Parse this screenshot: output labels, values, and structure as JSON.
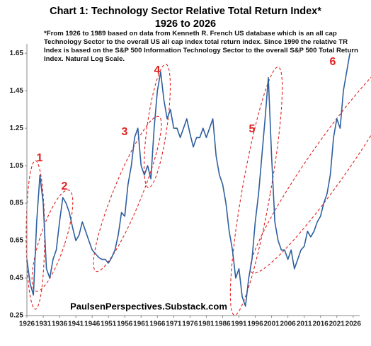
{
  "chart_data": {
    "type": "line",
    "title": "Chart 1: Technology Sector Relative Total Return Index*",
    "subtitle": "1926 to 2026",
    "note": "*From 1926 to 1989 based on data from Kenneth R. French US database which is an all cap Technology Sector to the overall US all cap index total return index.  Since 1990 the relative TR Index is based on the S&P 500 Information Technology Sector to the overall S&P 500 Total Return Index.   Natural Log Scale.",
    "source": "PaulsenPerspectives.Substack.com",
    "annotations": [
      "1",
      "2",
      "3",
      "4",
      "5",
      "6"
    ],
    "color": "#2e5f9e",
    "x": [
      1926,
      1927,
      1928,
      1929,
      1930,
      1931,
      1932,
      1933,
      1934,
      1935,
      1936,
      1937,
      1938,
      1939,
      1940,
      1941,
      1942,
      1943,
      1944,
      1945,
      1946,
      1947,
      1948,
      1949,
      1950,
      1951,
      1952,
      1953,
      1954,
      1955,
      1956,
      1957,
      1958,
      1959,
      1960,
      1961,
      1962,
      1963,
      1964,
      1965,
      1966,
      1967,
      1968,
      1969,
      1970,
      1971,
      1972,
      1973,
      1974,
      1975,
      1976,
      1977,
      1978,
      1979,
      1980,
      1981,
      1982,
      1983,
      1984,
      1985,
      1986,
      1987,
      1988,
      1989,
      1990,
      1991,
      1992,
      1993,
      1994,
      1995,
      1996,
      1997,
      1998,
      1999,
      2000,
      2001,
      2002,
      2003,
      2004,
      2005,
      2006,
      2007,
      2008,
      2009,
      2010,
      2011,
      2012,
      2013,
      2014,
      2015,
      2016,
      2017,
      2018,
      2019,
      2020,
      2021,
      2022,
      2023,
      2024,
      2025
    ],
    "values": [
      0.55,
      0.42,
      0.36,
      0.75,
      1.0,
      0.85,
      0.5,
      0.45,
      0.55,
      0.6,
      0.75,
      0.88,
      0.85,
      0.8,
      0.72,
      0.65,
      0.68,
      0.75,
      0.7,
      0.65,
      0.6,
      0.58,
      0.56,
      0.55,
      0.55,
      0.53,
      0.56,
      0.6,
      0.68,
      0.8,
      0.78,
      0.95,
      1.05,
      1.2,
      1.25,
      1.05,
      1.0,
      1.05,
      0.98,
      1.25,
      1.45,
      1.55,
      1.4,
      1.3,
      1.35,
      1.25,
      1.25,
      1.2,
      1.25,
      1.3,
      1.22,
      1.15,
      1.2,
      1.2,
      1.25,
      1.2,
      1.25,
      1.3,
      1.1,
      1.0,
      0.95,
      0.85,
      0.7,
      0.6,
      0.45,
      0.5,
      0.35,
      0.3,
      0.45,
      0.55,
      0.75,
      0.9,
      1.1,
      1.3,
      1.52,
      1.1,
      0.75,
      0.65,
      0.6,
      0.6,
      0.55,
      0.6,
      0.5,
      0.55,
      0.6,
      0.62,
      0.7,
      0.67,
      0.7,
      0.75,
      0.78,
      0.85,
      0.9,
      1.0,
      1.2,
      1.3,
      1.25,
      1.45,
      1.55,
      1.65
    ],
    "xlim": [
      1926,
      2028
    ],
    "xticks": [
      1926,
      1931,
      1936,
      1941,
      1946,
      1951,
      1956,
      1961,
      1966,
      1971,
      1976,
      1981,
      1986,
      1991,
      1996,
      2001,
      2006,
      2011,
      2016,
      2021,
      2026
    ],
    "ylim": [
      0.25,
      1.7
    ],
    "yticks": [
      0.25,
      0.45,
      0.65,
      0.85,
      1.05,
      1.25,
      1.45,
      1.65
    ],
    "grid": false
  }
}
